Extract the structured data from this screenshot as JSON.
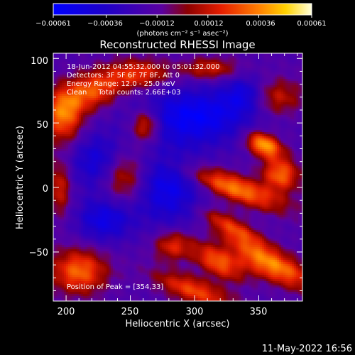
{
  "chart_data": {
    "type": "heatmap",
    "title": "Reconstructed RHESSI Image",
    "xlabel": "Heliocentric X (arcsec)",
    "ylabel": "Heliocentric Y (arcsec)",
    "xlim": [
      190,
      384
    ],
    "ylim": [
      -88,
      104
    ],
    "x_ticks": [
      200,
      250,
      300,
      350
    ],
    "y_ticks": [
      100,
      50,
      0,
      -50
    ],
    "x_tick_labels": [
      "200",
      "250",
      "300",
      "350"
    ],
    "y_tick_labels": [
      "100",
      "50",
      "0",
      "−50"
    ],
    "colorbar": {
      "range": [
        -0.00061,
        0.00061
      ],
      "tick_values": [
        -0.00061,
        -0.00036,
        -0.00012,
        0.00012,
        0.00036,
        0.00061
      ],
      "tick_labels": [
        "−0.00061",
        "−0.00036",
        "−0.00012",
        "0.00012",
        "0.00036",
        "0.00061"
      ],
      "units": "(photons cm⁻² s⁻¹ asec⁻²)"
    },
    "annotations": [
      "18-Jun-2012 04:55:32.000 to 05:01:32.000",
      "Detectors: 3F 5F 6F 7F 8F, Att 0",
      "Energy Range: 12.0 - 25.0 keV",
      "Clean     Total counts: 2.66E+03"
    ],
    "peak_label": "Position of Peak = [354,33]",
    "peak": {
      "x": 354,
      "y": 33
    },
    "sources": [
      {
        "x": 354,
        "y": 33,
        "intensity": 1.0,
        "sx": 10,
        "sy": 6,
        "angle": -25
      },
      {
        "x": 330,
        "y": 0,
        "intensity": 0.85,
        "sx": 28,
        "sy": 7,
        "angle": -20
      },
      {
        "x": 367,
        "y": 10,
        "intensity": 0.75,
        "sx": 10,
        "sy": 9,
        "angle": -20
      },
      {
        "x": 262,
        "y": 48,
        "intensity": 0.7,
        "sx": 8,
        "sy": 9,
        "angle": 0
      },
      {
        "x": 360,
        "y": -60,
        "intensity": 0.85,
        "sx": 25,
        "sy": 8,
        "angle": -25
      },
      {
        "x": 318,
        "y": -58,
        "intensity": 0.7,
        "sx": 15,
        "sy": 7,
        "angle": -30
      },
      {
        "x": 330,
        "y": -32,
        "intensity": 0.6,
        "sx": 20,
        "sy": 6,
        "angle": -30
      },
      {
        "x": 300,
        "y": -80,
        "intensity": 0.65,
        "sx": 22,
        "sy": 7,
        "angle": -20
      },
      {
        "x": 220,
        "y": 75,
        "intensity": 0.7,
        "sx": 18,
        "sy": 10,
        "angle": 20
      },
      {
        "x": 198,
        "y": 55,
        "intensity": 0.75,
        "sx": 10,
        "sy": 14,
        "angle": 0
      },
      {
        "x": 210,
        "y": -65,
        "intensity": 0.75,
        "sx": 15,
        "sy": 12,
        "angle": 0
      },
      {
        "x": 245,
        "y": 8,
        "intensity": 0.6,
        "sx": 12,
        "sy": 14,
        "angle": 0
      },
      {
        "x": 283,
        "y": -45,
        "intensity": 0.55,
        "sx": 10,
        "sy": 8,
        "angle": 0
      },
      {
        "x": 258,
        "y": 88,
        "intensity": 0.55,
        "sx": 16,
        "sy": 8,
        "angle": 0
      },
      {
        "x": 312,
        "y": 92,
        "intensity": 0.5,
        "sx": 15,
        "sy": 6,
        "angle": 0
      },
      {
        "x": 362,
        "y": 70,
        "intensity": 0.5,
        "sx": 15,
        "sy": 10,
        "angle": 0
      },
      {
        "x": 195,
        "y": 0,
        "intensity": 0.5,
        "sx": 6,
        "sy": 15,
        "angle": 0
      },
      {
        "x": 300,
        "y": 55,
        "intensity": -0.7,
        "sx": 30,
        "sy": 15,
        "angle": 0
      },
      {
        "x": 280,
        "y": 0,
        "intensity": -0.6,
        "sx": 20,
        "sy": 20,
        "angle": 0
      },
      {
        "x": 225,
        "y": 20,
        "intensity": -0.5,
        "sx": 15,
        "sy": 15,
        "angle": 0
      },
      {
        "x": 230,
        "y": -25,
        "intensity": -0.55,
        "sx": 15,
        "sy": 12,
        "angle": 0
      },
      {
        "x": 340,
        "y": 72,
        "intensity": -0.5,
        "sx": 12,
        "sy": 10,
        "angle": 0
      }
    ]
  },
  "footer": {
    "timestamp": "11-May-2022 16:56"
  }
}
